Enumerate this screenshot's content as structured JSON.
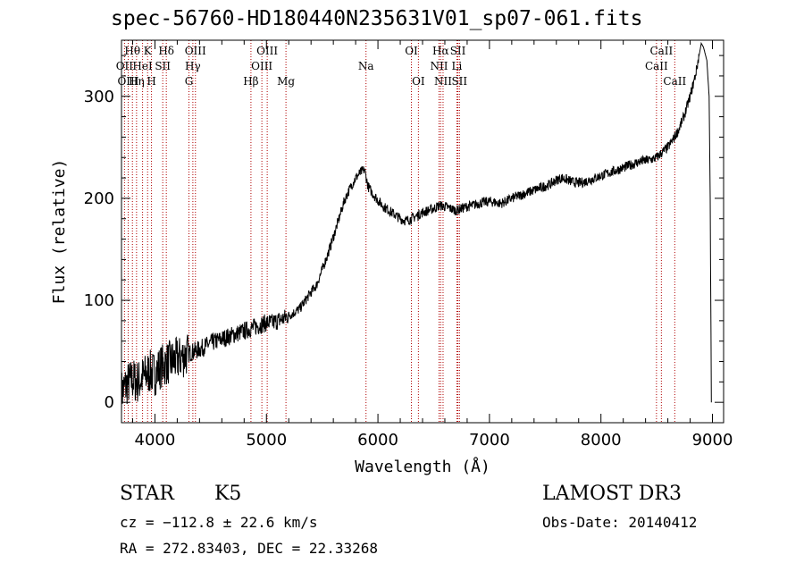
{
  "header": {
    "title": "spec-56760-HD180440N235631V01_sp07-061.fits"
  },
  "info": {
    "object_class": "STAR",
    "subclass": "K5",
    "survey": "LAMOST DR3",
    "cz": "cz = −112.8 ± 22.6 km/s",
    "obs_date": "Obs-Date: 20140412",
    "ra_dec": "RA = 272.83403, DEC =  22.33268"
  },
  "chart_data": {
    "type": "line",
    "title": "spec-56760-HD180440N235631V01_sp07-061.fits",
    "xlabel": "Wavelength (Å)",
    "ylabel": "Flux (relative)",
    "xlim": [
      3700,
      9100
    ],
    "ylim": [
      -20,
      355
    ],
    "xticks": [
      4000,
      5000,
      6000,
      7000,
      8000,
      9000
    ],
    "yticks": [
      0,
      100,
      200,
      300
    ],
    "series": [
      {
        "name": "spectrum",
        "x": [
          3700,
          3750,
          3800,
          3850,
          3900,
          3950,
          4000,
          4050,
          4100,
          4150,
          4200,
          4250,
          4300,
          4350,
          4400,
          4450,
          4500,
          4550,
          4600,
          4650,
          4700,
          4750,
          4800,
          4850,
          4900,
          4950,
          5000,
          5050,
          5100,
          5150,
          5200,
          5250,
          5300,
          5350,
          5400,
          5450,
          5500,
          5550,
          5600,
          5650,
          5700,
          5750,
          5800,
          5850,
          5880,
          5910,
          5950,
          6000,
          6050,
          6100,
          6150,
          6200,
          6250,
          6300,
          6350,
          6400,
          6450,
          6500,
          6550,
          6600,
          6650,
          6700,
          6750,
          6800,
          6850,
          6900,
          6950,
          7000,
          7050,
          7100,
          7150,
          7200,
          7250,
          7300,
          7350,
          7400,
          7450,
          7500,
          7550,
          7600,
          7650,
          7700,
          7750,
          7800,
          7850,
          7900,
          7950,
          8000,
          8050,
          8100,
          8150,
          8200,
          8250,
          8300,
          8350,
          8400,
          8450,
          8500,
          8550,
          8600,
          8650,
          8700,
          8750,
          8800,
          8850,
          8880,
          8900,
          8920,
          8950,
          8970,
          8980,
          8990
        ],
        "values": [
          10,
          18,
          22,
          20,
          25,
          30,
          28,
          35,
          38,
          40,
          42,
          45,
          48,
          50,
          52,
          55,
          58,
          60,
          62,
          64,
          66,
          68,
          70,
          72,
          74,
          76,
          78,
          78,
          80,
          82,
          85,
          88,
          92,
          100,
          108,
          115,
          130,
          145,
          162,
          180,
          198,
          210,
          220,
          226,
          228,
          212,
          205,
          198,
          192,
          188,
          184,
          180,
          178,
          180,
          183,
          186,
          188,
          190,
          193,
          192,
          190,
          188,
          190,
          192,
          193,
          195,
          196,
          197,
          196,
          195,
          197,
          200,
          202,
          204,
          206,
          208,
          210,
          212,
          214,
          218,
          220,
          218,
          216,
          215,
          216,
          218,
          220,
          222,
          224,
          226,
          228,
          230,
          232,
          234,
          236,
          237,
          238,
          240,
          245,
          250,
          258,
          268,
          282,
          300,
          322,
          340,
          352,
          348,
          335,
          300,
          200,
          0
        ]
      }
    ],
    "spectral_lines": [
      {
        "label": "Hθ",
        "wavelength": 3798,
        "row": 0
      },
      {
        "label": "OII",
        "wavelength": 3727,
        "row": 1
      },
      {
        "label": "OIII",
        "wavelength": 3760,
        "row": 2
      },
      {
        "label": "K",
        "wavelength": 3934,
        "row": 0
      },
      {
        "label": "HeI",
        "wavelength": 3889,
        "row": 1
      },
      {
        "label": "Hη",
        "wavelength": 3835,
        "row": 2
      },
      {
        "label": "Hδ",
        "wavelength": 4102,
        "row": 0
      },
      {
        "label": "SII",
        "wavelength": 4070,
        "row": 1
      },
      {
        "label": "H",
        "wavelength": 3969,
        "row": 2
      },
      {
        "label": "OIII",
        "wavelength": 4363,
        "row": 0
      },
      {
        "label": "Hγ",
        "wavelength": 4340,
        "row": 1
      },
      {
        "label": "G",
        "wavelength": 4305,
        "row": 2
      },
      {
        "label": "OIII",
        "wavelength": 5007,
        "row": 0
      },
      {
        "label": "OIII",
        "wavelength": 4959,
        "row": 1
      },
      {
        "label": "Hβ",
        "wavelength": 4861,
        "row": 2
      },
      {
        "label": "Mg",
        "wavelength": 5175,
        "row": 2
      },
      {
        "label": "Na",
        "wavelength": 5893,
        "row": 1
      },
      {
        "label": "OI",
        "wavelength": 6300,
        "row": 0
      },
      {
        "label": "OI",
        "wavelength": 6363,
        "row": 2
      },
      {
        "label": "Hα",
        "wavelength": 6563,
        "row": 0
      },
      {
        "label": "SII",
        "wavelength": 6717,
        "row": 0
      },
      {
        "label": "NII",
        "wavelength": 6548,
        "row": 1
      },
      {
        "label": "Li",
        "wavelength": 6708,
        "row": 1
      },
      {
        "label": "NII",
        "wavelength": 6584,
        "row": 2
      },
      {
        "label": "SII",
        "wavelength": 6731,
        "row": 2
      },
      {
        "label": "CaII",
        "wavelength": 8542,
        "row": 0
      },
      {
        "label": "CaII",
        "wavelength": 8498,
        "row": 1
      },
      {
        "label": "CaII",
        "wavelength": 8662,
        "row": 2
      }
    ],
    "colors": {
      "spectrum": "#000000",
      "line_markers": "#b00000"
    }
  }
}
